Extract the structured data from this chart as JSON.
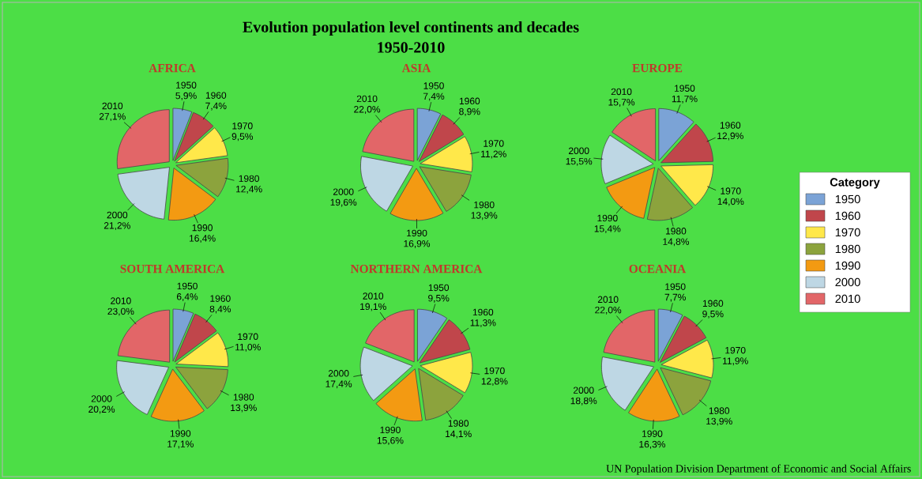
{
  "chart_data": [
    {
      "type": "other",
      "title": "Evolution population level continents and decades",
      "subtitle": "1950-2010",
      "annotations": [
        "UN Population Division Department of Economic and Social Affairs"
      ]
    },
    {
      "type": "pie",
      "title": "AFRICA",
      "categories": [
        "1950",
        "1960",
        "1970",
        "1980",
        "1990",
        "2000",
        "2010"
      ],
      "values": [
        5.9,
        7.4,
        9.5,
        12.4,
        16.4,
        21.2,
        27.1
      ],
      "value_labels": [
        "5,9%",
        "7,4%",
        "9,5%",
        "12,4%",
        "16,4%",
        "21,2%",
        "27,1%"
      ],
      "colors": [
        "#7ba3d6",
        "#c0464b",
        "#ffe84a",
        "#8ca33d",
        "#f39a12",
        "#bed7e4",
        "#e26668"
      ]
    },
    {
      "type": "pie",
      "title": "ASIA",
      "categories": [
        "1950",
        "1960",
        "1970",
        "1980",
        "1990",
        "2000",
        "2010"
      ],
      "values": [
        7.4,
        8.9,
        11.2,
        13.9,
        16.9,
        19.6,
        22.0
      ],
      "value_labels": [
        "7,4%",
        "8,9%",
        "11,2%",
        "13,9%",
        "16,9%",
        "19,6%",
        "22,0%"
      ],
      "colors": [
        "#7ba3d6",
        "#c0464b",
        "#ffe84a",
        "#8ca33d",
        "#f39a12",
        "#bed7e4",
        "#e26668"
      ]
    },
    {
      "type": "pie",
      "title": "EUROPE",
      "legend": "right",
      "legend_title": "Category",
      "categories": [
        "1950",
        "1960",
        "1970",
        "1980",
        "1990",
        "2000",
        "2010"
      ],
      "values": [
        11.7,
        12.9,
        14.0,
        14.8,
        15.4,
        15.5,
        15.7
      ],
      "value_labels": [
        "11,7%",
        "12,9%",
        "14,0%",
        "14,8%",
        "15,4%",
        "15,5%",
        "15,7%"
      ],
      "colors": [
        "#7ba3d6",
        "#c0464b",
        "#ffe84a",
        "#8ca33d",
        "#f39a12",
        "#bed7e4",
        "#e26668"
      ]
    },
    {
      "type": "pie",
      "title": "SOUTH AMERICA",
      "categories": [
        "1950",
        "1960",
        "1970",
        "1980",
        "1990",
        "2000",
        "2010"
      ],
      "values": [
        6.4,
        8.4,
        11.0,
        13.9,
        17.1,
        20.2,
        23.0
      ],
      "value_labels": [
        "6,4%",
        "8,4%",
        "11,0%",
        "13,9%",
        "17,1%",
        "20,2%",
        "23,0%"
      ],
      "colors": [
        "#7ba3d6",
        "#c0464b",
        "#ffe84a",
        "#8ca33d",
        "#f39a12",
        "#bed7e4",
        "#e26668"
      ]
    },
    {
      "type": "pie",
      "title": "NORTHERN AMERICA",
      "categories": [
        "1950",
        "1960",
        "1970",
        "1980",
        "1990",
        "2000",
        "2010"
      ],
      "values": [
        9.5,
        11.3,
        12.8,
        14.1,
        15.6,
        17.4,
        19.1
      ],
      "value_labels": [
        "9,5%",
        "11,3%",
        "12,8%",
        "14,1%",
        "15,6%",
        "17,4%",
        "19,1%"
      ],
      "colors": [
        "#7ba3d6",
        "#c0464b",
        "#ffe84a",
        "#8ca33d",
        "#f39a12",
        "#bed7e4",
        "#e26668"
      ]
    },
    {
      "type": "pie",
      "title": "OCEANIA",
      "categories": [
        "1950",
        "1960",
        "1970",
        "1980",
        "1990",
        "2000",
        "2010"
      ],
      "values": [
        7.7,
        9.5,
        11.9,
        13.9,
        16.3,
        18.8,
        22.0
      ],
      "value_labels": [
        "7,7%",
        "9,5%",
        "11,9%",
        "13,9%",
        "16,3%",
        "18,8%",
        "22,0%"
      ],
      "colors": [
        "#7ba3d6",
        "#c0464b",
        "#ffe84a",
        "#8ca33d",
        "#f39a12",
        "#bed7e4",
        "#e26668"
      ]
    }
  ]
}
